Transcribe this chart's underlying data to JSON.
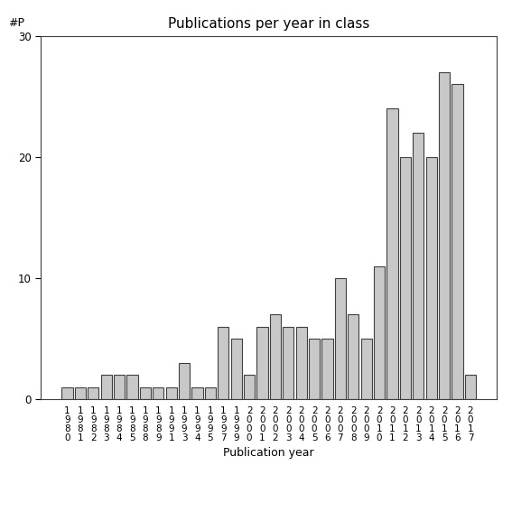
{
  "title": "Publications per year in class",
  "xlabel": "Publication year",
  "ylabel": "#P",
  "ylim": [
    0,
    30
  ],
  "yticks": [
    0,
    10,
    20,
    30
  ],
  "bar_color": "#c8c8c8",
  "bar_edgecolor": "#404040",
  "bar_linewidth": 0.8,
  "categories": [
    "1\n9\n8\n0",
    "1\n9\n8\n1",
    "1\n9\n8\n2",
    "1\n9\n8\n3",
    "1\n9\n8\n4",
    "1\n9\n8\n5",
    "1\n9\n8\n8",
    "1\n9\n8\n9",
    "1\n9\n9\n1",
    "1\n9\n9\n3",
    "1\n9\n9\n4",
    "1\n9\n9\n5",
    "1\n9\n9\n7",
    "1\n9\n9\n9",
    "2\n0\n0\n0",
    "2\n0\n0\n1",
    "2\n0\n0\n2",
    "2\n0\n0\n3",
    "2\n0\n0\n4",
    "2\n0\n0\n5",
    "2\n0\n0\n6",
    "2\n0\n0\n7",
    "2\n0\n0\n8",
    "2\n0\n0\n9",
    "2\n0\n1\n0",
    "2\n0\n1\n1",
    "2\n0\n1\n2",
    "2\n0\n1\n3",
    "2\n0\n1\n4",
    "2\n0\n1\n5",
    "2\n0\n1\n6",
    "2\n0\n1\n7"
  ],
  "values": [
    1,
    1,
    1,
    2,
    2,
    2,
    1,
    1,
    1,
    3,
    1,
    1,
    6,
    5,
    2,
    6,
    7,
    6,
    6,
    5,
    5,
    10,
    7,
    5,
    11,
    24,
    20,
    22,
    20,
    27,
    26,
    2
  ],
  "title_fontsize": 11,
  "label_fontsize": 9,
  "tick_fontsize": 7.5,
  "ylabel_fontsize": 9
}
